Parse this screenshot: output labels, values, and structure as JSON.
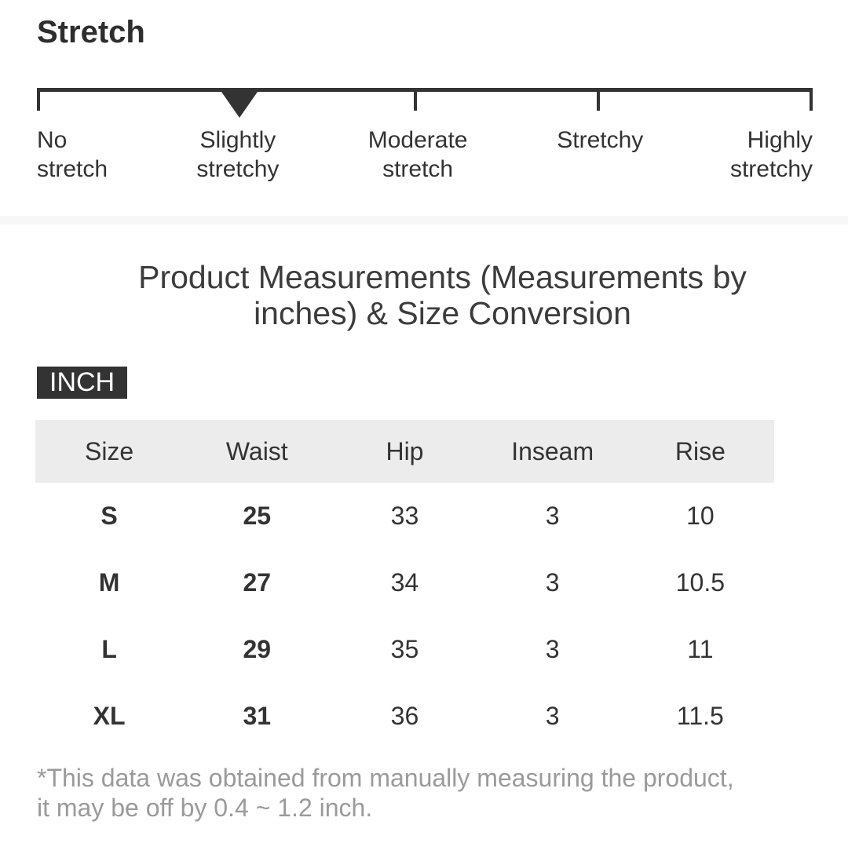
{
  "stretch": {
    "heading": "Stretch",
    "levels": [
      "No\nstretch",
      "Slightly\nstretchy",
      "Moderate\nstretch",
      "Stretchy",
      "Highly\nstretchy"
    ],
    "selected_level": "Slightly stretchy"
  },
  "measurements": {
    "title": "Product Measurements (Measurements by\ninches) & Size Conversion",
    "unit_badge": "INCH",
    "table": {
      "headers": [
        "Size",
        "Waist",
        "Hip",
        "Inseam",
        "Rise"
      ],
      "rows": [
        [
          "S",
          "25",
          "33",
          "3",
          "10"
        ],
        [
          "M",
          "27",
          "34",
          "3",
          "10.5"
        ],
        [
          "L",
          "29",
          "35",
          "3",
          "11"
        ],
        [
          "XL",
          "31",
          "36",
          "3",
          "11.5"
        ]
      ]
    },
    "footnote": "*This data was obtained from manually measuring the product,\n it may be off by 0.4 ~ 1.2 inch."
  },
  "colors": {
    "text_dark": "#333333",
    "table_header_bg": "#ececec",
    "divider": "#f7f7f7",
    "footnote_gray": "#9a9a9a",
    "badge_bg": "#333333",
    "badge_text": "#ffffff"
  }
}
